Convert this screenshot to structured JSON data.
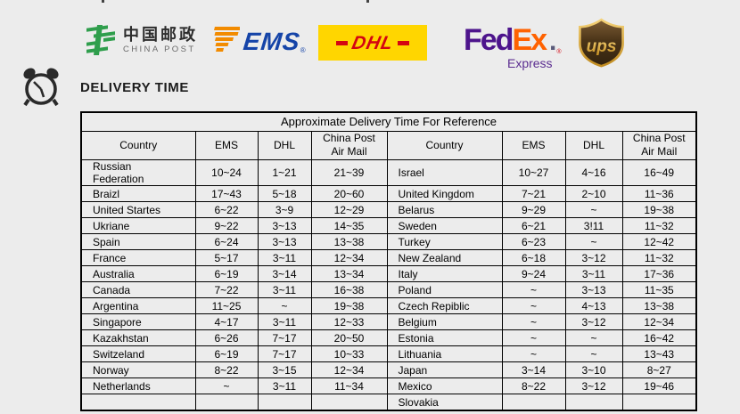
{
  "page": {
    "background": "#ececec"
  },
  "logos": {
    "china_post": {
      "name_cn": "中国邮政",
      "name_en": "CHINA POST",
      "green": "#2f9e4c"
    },
    "ems": {
      "label": "EMS",
      "reg": "®",
      "blue": "#1544a8",
      "orange": "#f28b00"
    },
    "dhl": {
      "label": "DHL",
      "red": "#d40511",
      "yellow": "#ffd600"
    },
    "fedex": {
      "part1": "Fed",
      "part2": "Ex",
      "dot": ".",
      "reg": "®",
      "sub": "Express",
      "purple": "#4d148c",
      "orange": "#ff6200"
    },
    "ups": {
      "label": "ups",
      "brown": "#4a3418",
      "gold": "#e7a93c"
    }
  },
  "heading": {
    "title": "DELIVERY TIME",
    "icon": "alarm-clock"
  },
  "table": {
    "title": "Approximate Delivery Time For Reference",
    "columns": [
      "Country",
      "EMS",
      "DHL",
      "China Post Air Mail",
      "Country",
      "EMS",
      "DHL",
      "China Post Air Mail"
    ],
    "rows": [
      [
        "Russian Federation",
        "10~24",
        "1~21",
        "21~39",
        "Israel",
        "10~27",
        "4~16",
        "16~49"
      ],
      [
        "Braizl",
        "17~43",
        "5~18",
        "20~60",
        "United Kingdom",
        "7~21",
        "2~10",
        "11~36"
      ],
      [
        "United Startes",
        "6~22",
        "3~9",
        "12~29",
        "Belarus",
        "9~29",
        "~",
        "19~38"
      ],
      [
        "Ukriane",
        "9~22",
        "3~13",
        "14~35",
        "Sweden",
        "6~21",
        "3!11",
        "11~32"
      ],
      [
        "Spain",
        "6~24",
        "3~13",
        "13~38",
        "Turkey",
        "6~23",
        "~",
        "12~42"
      ],
      [
        "France",
        "5~17",
        "3~11",
        "12~34",
        "New Zealand",
        "6~18",
        "3~12",
        "11~32"
      ],
      [
        "Australia",
        "6~19",
        "3~14",
        "13~34",
        "Italy",
        "9~24",
        "3~11",
        "17~36"
      ],
      [
        "Canada",
        "7~22",
        "3~11",
        "16~38",
        "Poland",
        "~",
        "3~13",
        "11~35"
      ],
      [
        "Argentina",
        "11~25",
        "~",
        "19~38",
        "Czech Repiblic",
        "~",
        "4~13",
        "13~38"
      ],
      [
        "Singapore",
        "4~17",
        "3~11",
        "12~33",
        "Belgium",
        "~",
        "3~12",
        "12~34"
      ],
      [
        "Kazakhstan",
        "6~26",
        "7~17",
        "20~50",
        "Estonia",
        "~",
        "~",
        "16~42"
      ],
      [
        "Switzeland",
        "6~19",
        "7~17",
        "10~33",
        "Lithuania",
        "~",
        "~",
        "13~43"
      ],
      [
        "Norway",
        "8~22",
        "3~15",
        "12~34",
        "Japan",
        "3~14",
        "3~10",
        "8~27"
      ],
      [
        "Netherlands",
        "~",
        "3~11",
        "11~34",
        "Mexico",
        "8~22",
        "3~12",
        "19~46"
      ],
      [
        "",
        "",
        "",
        "",
        "Slovakia",
        "",
        "",
        ""
      ]
    ]
  }
}
